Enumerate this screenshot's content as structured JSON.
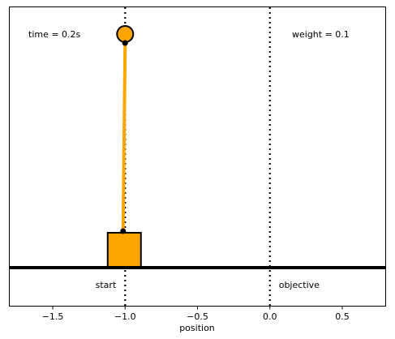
{
  "hud": {
    "time_label": "time = 0.2s",
    "weight_label": "weight = 0.1"
  },
  "markers": {
    "start_label": "start",
    "objective_label": "objective",
    "start_x": -1.0,
    "objective_x": 0.0
  },
  "axis": {
    "xlabel": "position",
    "xlim": [
      -1.8,
      0.8
    ],
    "ticks": [
      -1.5,
      -1.0,
      -0.5,
      0.0,
      0.5
    ],
    "tick_labels": [
      "−1.5",
      "−1.0",
      "−0.5",
      "0.0",
      "0.5"
    ]
  },
  "state": {
    "cart_x": -1.0,
    "pendulum_tip_x": -1.0
  },
  "colors": {
    "pendulum": "#FFA500",
    "cart": "#FFA500",
    "outline": "#000000"
  }
}
